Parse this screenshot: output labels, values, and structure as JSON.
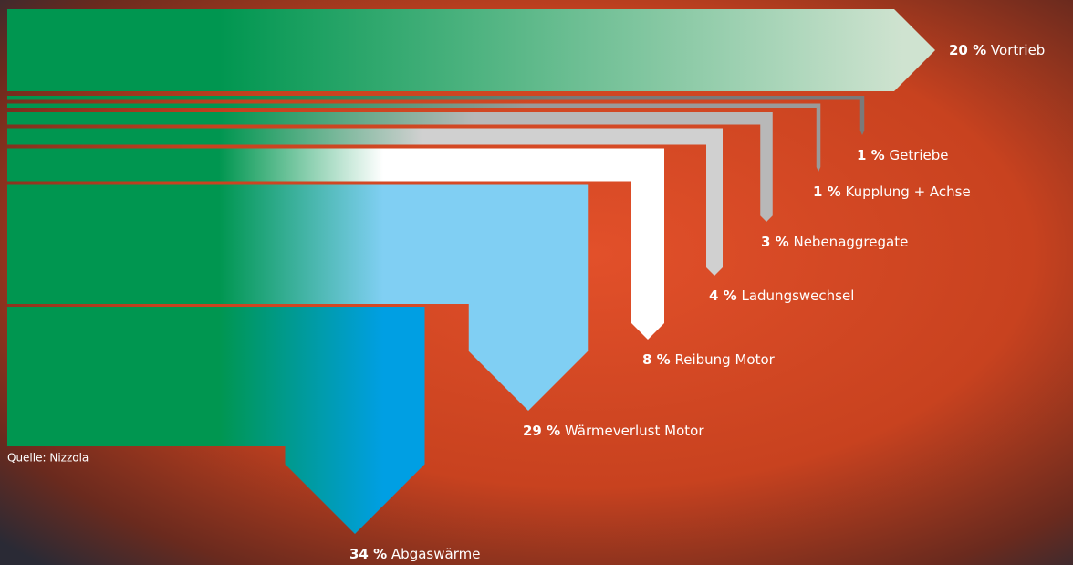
{
  "chart_data": {
    "type": "sankey",
    "categories": [
      "Vortrieb",
      "Getriebe",
      "Kupplung + Achse",
      "Nebenaggregate",
      "Ladungswechsel",
      "Reibung Motor",
      "Wärmeverlust Motor",
      "Abgaswärme"
    ],
    "values": [
      20,
      1,
      1,
      3,
      4,
      8,
      29,
      34
    ],
    "value_labels": [
      "20 %",
      "1 %",
      "1 %",
      "3 %",
      "4 %",
      "8 %",
      "29 %",
      "34 %"
    ],
    "colors": [
      "#cfe3d0",
      "#7a7a7a",
      "#9a9a9a",
      "#b8b8b8",
      "#d0d0d0",
      "#ffffff",
      "#80cff3",
      "#009fe3"
    ],
    "source": "Quelle: Nizzola"
  }
}
